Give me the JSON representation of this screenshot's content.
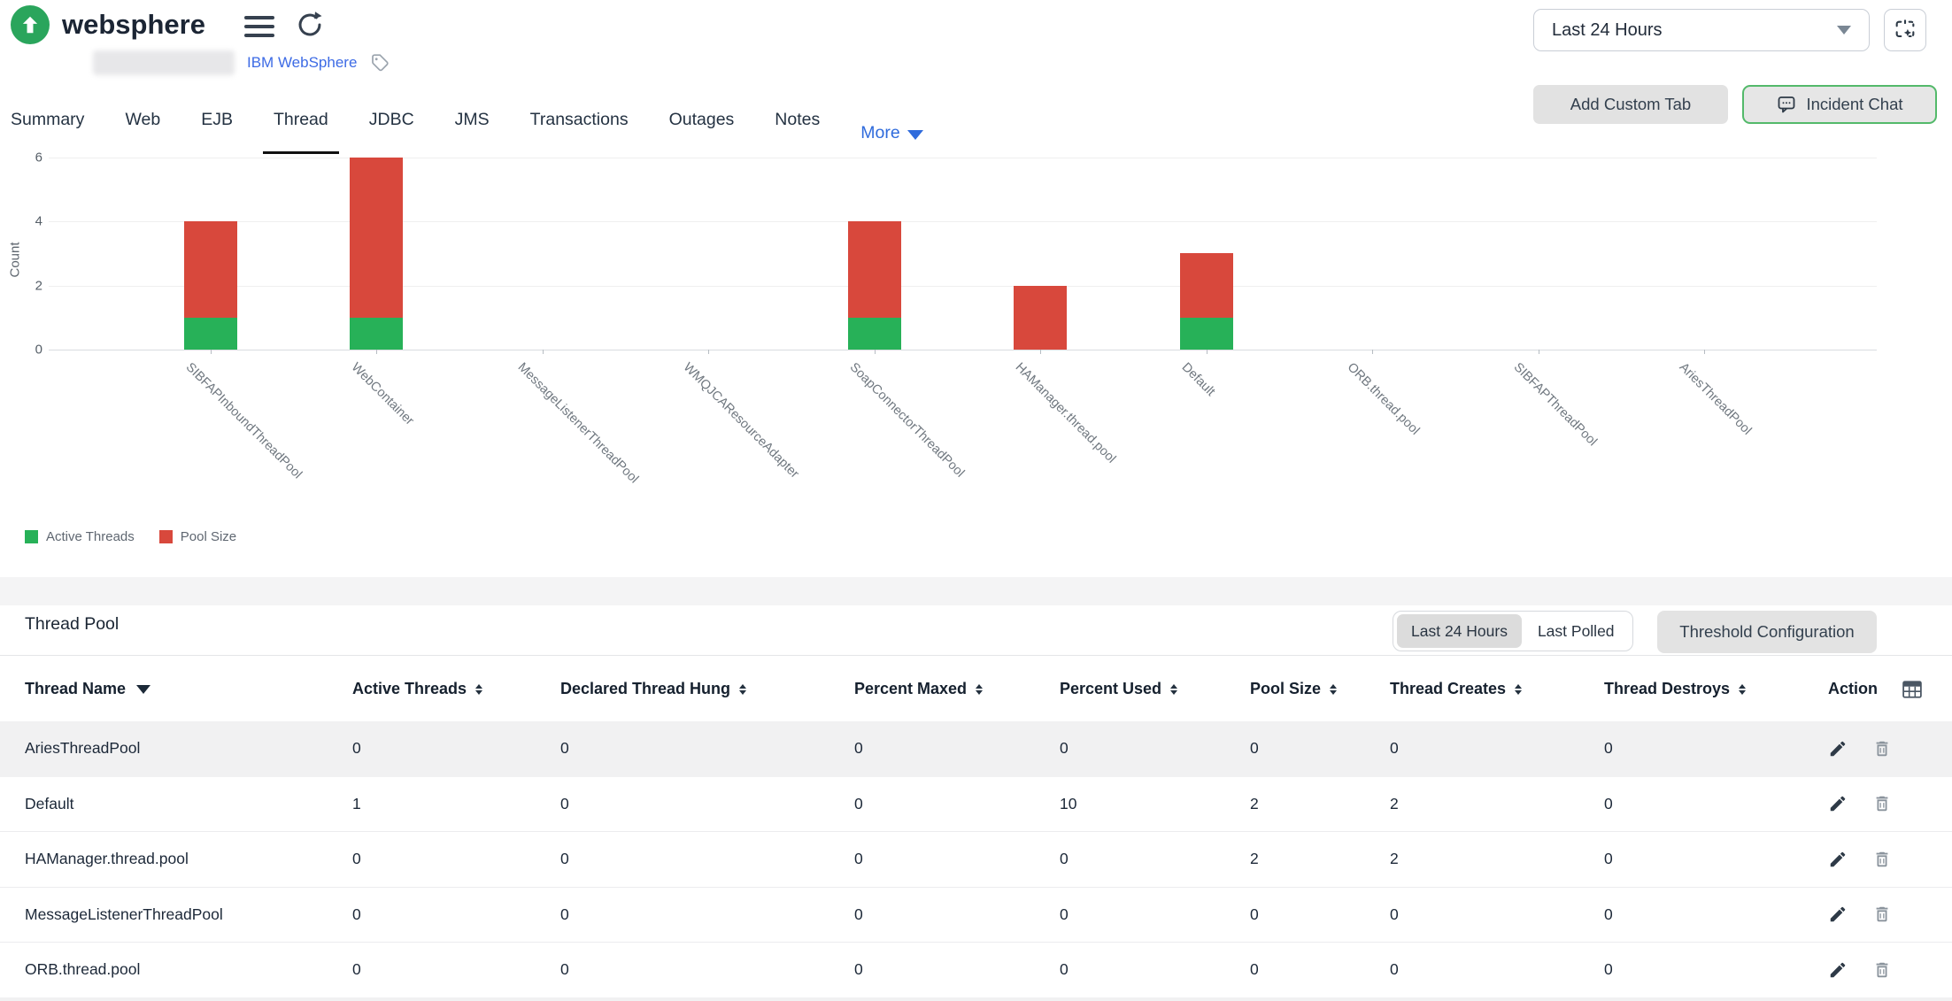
{
  "header": {
    "monitor_name": "websphere",
    "monitor_subtitle_link": "IBM WebSphere",
    "time_range_value": "Last 24 Hours",
    "add_custom_tab_label": "Add Custom Tab",
    "incident_chat_label": "Incident Chat"
  },
  "tabs": {
    "items": [
      "Summary",
      "Web",
      "EJB",
      "Thread",
      "JDBC",
      "JMS",
      "Transactions",
      "Outages",
      "Notes"
    ],
    "active": "Thread",
    "more_label": "More"
  },
  "chart_data": {
    "type": "bar",
    "stacked": true,
    "title": "",
    "xlabel": "",
    "ylabel": "Count",
    "ylim": [
      0,
      6
    ],
    "yticks": [
      0,
      2,
      4,
      6
    ],
    "grid": true,
    "legend_position": "bottom-left",
    "categories": [
      "SIBFAPInboundThreadPool",
      "WebContainer",
      "MessageListenerThreadPool",
      "WMQJCAResourceAdapter",
      "SoapConnectorThreadPool",
      "HAManager.thread.pool",
      "Default",
      "ORB.thread.pool",
      "SIBFAPThreadPool",
      "AriesThreadPool"
    ],
    "series": [
      {
        "name": "Active Threads",
        "color": "#27b158",
        "values": [
          1,
          1,
          0,
          0,
          1,
          0,
          1,
          0,
          0,
          0
        ]
      },
      {
        "name": "Pool Size",
        "color": "#d8483c",
        "values": [
          3,
          5,
          0,
          0,
          3,
          2,
          2,
          0,
          0,
          0
        ]
      }
    ]
  },
  "thread_pool": {
    "title": "Thread Pool",
    "range_toggle": {
      "options": [
        "Last 24 Hours",
        "Last Polled"
      ],
      "selected": "Last 24 Hours"
    },
    "threshold_button_label": "Threshold Configuration",
    "columns": [
      "Thread Name",
      "Active Threads",
      "Declared Thread Hung",
      "Percent Maxed",
      "Percent Used",
      "Pool Size",
      "Thread Creates",
      "Thread Destroys",
      "Action"
    ],
    "rows": [
      {
        "name": "AriesThreadPool",
        "values": [
          "0",
          "0",
          "0",
          "0",
          "0",
          "0",
          "0"
        ]
      },
      {
        "name": "Default",
        "values": [
          "1",
          "0",
          "0",
          "10",
          "2",
          "2",
          "0"
        ]
      },
      {
        "name": "HAManager.thread.pool",
        "values": [
          "0",
          "0",
          "0",
          "0",
          "2",
          "2",
          "0"
        ]
      },
      {
        "name": "MessageListenerThreadPool",
        "values": [
          "0",
          "0",
          "0",
          "0",
          "0",
          "0",
          "0"
        ]
      },
      {
        "name": "ORB.thread.pool",
        "values": [
          "0",
          "0",
          "0",
          "0",
          "0",
          "0",
          "0"
        ]
      }
    ]
  },
  "colors": {
    "active_threads": "#27b158",
    "pool_size": "#d8483c",
    "status_up": "#2aa55c",
    "link_blue": "#3d6be5",
    "incident_chat_border": "#53b96a"
  }
}
